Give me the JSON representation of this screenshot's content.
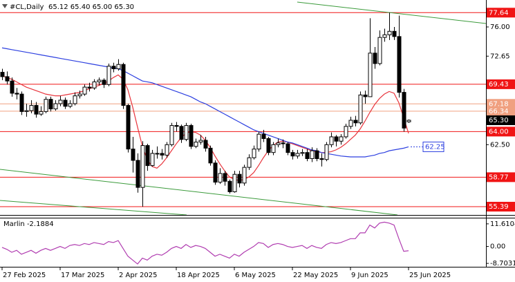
{
  "chart_data": [
    {
      "type": "candlestick",
      "title": "#CL,Daily",
      "header": "65.12 65.40 65.00 65.30",
      "categories": [
        "27 Feb 2025",
        null,
        null,
        null,
        null,
        null,
        null,
        null,
        null,
        null,
        null,
        null,
        "17 Mar 2025",
        null,
        null,
        null,
        null,
        null,
        null,
        null,
        null,
        null,
        null,
        null,
        "2 Apr 2025",
        null,
        null,
        null,
        null,
        null,
        null,
        null,
        null,
        null,
        null,
        null,
        "18 Apr 2025",
        null,
        null,
        null,
        null,
        null,
        null,
        null,
        null,
        null,
        null,
        null,
        "6 May 2025",
        null,
        null,
        null,
        null,
        null,
        null,
        null,
        null,
        null,
        null,
        null,
        "22 May 2025",
        null,
        null,
        null,
        null,
        null,
        null,
        null,
        null,
        null,
        null,
        null,
        "9 Jun 2025",
        null,
        null,
        null,
        null,
        null,
        null,
        null,
        null,
        null,
        null,
        null,
        "25 Jun 2025"
      ],
      "open": [
        70.8,
        70.3,
        69.8,
        68.4,
        68.3,
        66.3,
        66.4,
        67.0,
        66.0,
        66.3,
        67.7,
        66.6,
        67.2,
        67.6,
        66.9,
        67.2,
        68.1,
        68.3,
        69.1,
        69.0,
        69.7,
        69.9,
        69.4,
        71.5,
        71.2,
        71.7,
        67.0,
        62.0,
        60.7,
        57.6,
        62.4,
        60.1,
        61.5,
        61.5,
        61.3,
        62.5,
        64.7,
        64.6,
        63.1,
        64.7,
        62.3,
        62.8,
        63.0,
        62.1,
        60.4,
        58.2,
        59.2,
        58.3,
        57.1,
        59.1,
        58.1,
        59.9,
        61.0,
        62.0,
        63.7,
        63.2,
        61.6,
        62.5,
        62.7,
        62.6,
        61.6,
        61.2,
        61.5,
        61.6,
        60.9,
        61.8,
        60.9,
        60.8,
        62.5,
        63.4,
        62.9,
        63.4,
        64.6,
        65.3,
        65.0,
        68.2,
        68.0,
        73.0,
        71.8,
        74.8,
        75.1,
        75.5,
        74.9,
        68.5,
        65.12
      ],
      "high": [
        71.2,
        70.9,
        70.2,
        69.0,
        68.6,
        67.2,
        67.6,
        67.4,
        66.9,
        68.0,
        68.0,
        67.6,
        68.1,
        67.9,
        67.6,
        68.5,
        68.7,
        69.4,
        69.6,
        70.0,
        70.2,
        70.1,
        71.8,
        71.9,
        72.3,
        71.9,
        67.2,
        63.4,
        61.5,
        62.9,
        62.6,
        61.9,
        62.3,
        62.0,
        62.8,
        65.0,
        65.1,
        64.8,
        65.0,
        64.9,
        63.2,
        63.6,
        63.4,
        62.4,
        60.7,
        59.8,
        59.5,
        58.5,
        59.5,
        59.5,
        60.2,
        61.4,
        62.4,
        64.0,
        64.2,
        63.4,
        62.8,
        63.2,
        63.1,
        62.8,
        61.9,
        61.9,
        62.0,
        62.0,
        62.2,
        62.1,
        61.5,
        62.8,
        63.9,
        63.6,
        63.7,
        64.9,
        65.7,
        65.8,
        68.6,
        68.7,
        77.0,
        73.7,
        75.6,
        75.8,
        77.64,
        76.0,
        77.3,
        68.9,
        65.4
      ],
      "low": [
        69.9,
        69.4,
        68.0,
        67.7,
        65.9,
        65.7,
        66.1,
        65.6,
        65.8,
        66.1,
        66.3,
        66.4,
        66.9,
        66.6,
        66.7,
        67.0,
        67.8,
        68.1,
        68.6,
        68.8,
        69.3,
        69.0,
        69.2,
        70.8,
        71.0,
        66.6,
        61.6,
        59.3,
        57.0,
        55.39,
        59.5,
        60.0,
        60.9,
        60.8,
        61.0,
        62.3,
        64.0,
        62.7,
        62.9,
        62.0,
        62.1,
        62.5,
        61.7,
        60.1,
        57.9,
        58.0,
        57.8,
        56.9,
        57.0,
        57.6,
        57.8,
        59.6,
        60.8,
        61.7,
        62.8,
        61.3,
        61.3,
        62.2,
        62.1,
        61.3,
        60.8,
        60.9,
        61.2,
        60.6,
        60.5,
        60.6,
        60.0,
        60.6,
        62.2,
        62.3,
        62.5,
        63.2,
        64.3,
        64.6,
        64.8,
        67.2,
        68.0,
        71.2,
        71.6,
        74.3,
        74.5,
        74.5,
        67.9,
        64.0,
        65.0
      ],
      "close": [
        70.3,
        69.8,
        68.4,
        68.3,
        66.3,
        66.4,
        67.0,
        66.0,
        66.3,
        67.7,
        66.6,
        67.2,
        67.6,
        66.9,
        67.2,
        68.1,
        68.3,
        69.1,
        69.0,
        69.7,
        69.9,
        69.4,
        71.5,
        71.2,
        71.7,
        67.0,
        62.0,
        60.7,
        57.6,
        62.4,
        60.1,
        61.5,
        61.5,
        61.3,
        62.5,
        64.7,
        64.6,
        63.1,
        64.7,
        62.3,
        62.8,
        63.0,
        62.1,
        60.4,
        58.2,
        59.2,
        58.3,
        57.1,
        59.1,
        58.1,
        59.9,
        61.0,
        62.0,
        63.7,
        63.2,
        61.6,
        62.5,
        62.7,
        62.6,
        61.6,
        61.2,
        61.5,
        61.6,
        60.9,
        61.8,
        60.9,
        60.8,
        62.5,
        63.4,
        62.9,
        63.4,
        64.6,
        65.3,
        65.0,
        68.2,
        68.0,
        73.0,
        71.8,
        74.8,
        75.1,
        75.5,
        74.9,
        68.5,
        64.4,
        65.3
      ],
      "up_color": "#ffffff",
      "down_color": "#000000",
      "edge_color": "#000000",
      "series": [
        {
          "color": "#e8343c",
          "values": [
            70.4,
            70.2,
            70.0,
            69.7,
            69.4,
            69.1,
            68.9,
            68.7,
            68.5,
            68.3,
            68.2,
            68.1,
            68.1,
            68.2,
            68.3,
            68.4,
            68.5,
            68.7,
            68.9,
            69.1,
            69.3,
            69.5,
            69.8,
            70.2,
            70.5,
            70.0,
            68.8,
            66.8,
            64.5,
            62.3,
            60.8,
            60.0,
            59.8,
            60.3,
            61.0,
            61.8,
            62.6,
            63.3,
            63.8,
            64.0,
            63.9,
            63.6,
            63.0,
            62.2,
            61.2,
            60.3,
            59.5,
            58.8,
            58.5,
            58.4,
            58.5,
            58.8,
            59.3,
            60.1,
            61.0,
            61.8,
            62.4,
            62.8,
            62.9,
            62.8,
            62.6,
            62.4,
            62.2,
            62.0,
            61.8,
            61.7,
            61.6,
            61.6,
            61.7,
            61.9,
            62.2,
            62.6,
            63.1,
            63.6,
            64.3,
            65.2,
            66.2,
            67.1,
            67.8,
            68.3,
            68.6,
            68.4,
            67.3,
            65.6,
            63.8
          ]
        },
        {
          "color": "#2c3fe0",
          "value_box": true,
          "values": [
            73.6,
            73.5,
            73.4,
            73.3,
            73.2,
            73.1,
            73.0,
            72.9,
            72.8,
            72.7,
            72.6,
            72.5,
            72.4,
            72.3,
            72.2,
            72.1,
            72.0,
            71.9,
            71.8,
            71.7,
            71.6,
            71.5,
            71.4,
            71.3,
            71.2,
            71.0,
            70.7,
            70.4,
            70.1,
            69.8,
            69.7,
            69.6,
            69.4,
            69.2,
            69.0,
            68.8,
            68.6,
            68.4,
            68.2,
            68.0,
            67.7,
            67.4,
            67.2,
            66.9,
            66.6,
            66.3,
            66.0,
            65.7,
            65.4,
            65.1,
            64.8,
            64.5,
            64.2,
            64.0,
            63.8,
            63.6,
            63.4,
            63.2,
            63.0,
            62.8,
            62.7,
            62.5,
            62.3,
            62.1,
            61.9,
            61.8,
            61.6,
            61.5,
            61.4,
            61.3,
            61.2,
            61.15,
            61.1,
            61.1,
            61.1,
            61.1,
            61.2,
            61.3,
            61.5,
            61.6,
            61.8,
            61.9,
            62.0,
            62.1,
            62.25
          ]
        }
      ],
      "levels": [
        {
          "value": 77.64,
          "label": "77.64",
          "color": "#f01414"
        },
        {
          "value": 69.43,
          "label": "69.43",
          "color": "#f01414"
        },
        {
          "value": 67.18,
          "label": "67.18",
          "color": "#f0a080"
        },
        {
          "value": 66.34,
          "label": "66.34",
          "color": "#f0a080"
        },
        {
          "value": 64,
          "label": "64.00",
          "color": "#f01414"
        },
        {
          "value": 58.77,
          "label": "58.77",
          "color": "#f01414"
        },
        {
          "value": 55.39,
          "label": "55.39",
          "color": "#f01414"
        }
      ],
      "current_price": {
        "value": 65.3,
        "label": "65.30"
      },
      "ylim": [
        54.44,
        79.09
      ],
      "yticks": [
        {
          "value": 76,
          "label": "76.00"
        },
        72.65,
        {
          "value": 62.5,
          "label": "62.50"
        }
      ]
    },
    {
      "type": "line",
      "title": "Marlin",
      "color": "#b03cb0",
      "values": [
        -0.5,
        -1.5,
        -3,
        -2,
        -4,
        -3,
        -2,
        -3.5,
        -2,
        -1,
        -2,
        -1,
        0,
        -1,
        0.5,
        1,
        0.5,
        1.5,
        1,
        2,
        1.5,
        1,
        2.5,
        2,
        3,
        -1,
        -5,
        -7,
        -9,
        -6,
        -7,
        -5,
        -4,
        -4.5,
        -3,
        -1,
        0,
        -1,
        1,
        -0.5,
        0.5,
        0,
        -1,
        -3,
        -5,
        -4,
        -5,
        -6,
        -4,
        -5,
        -3,
        -1.5,
        0,
        2,
        1.5,
        -0.5,
        1,
        1.5,
        1,
        0,
        -0.5,
        0,
        0.5,
        -1,
        0.5,
        -0.5,
        -1,
        1,
        2,
        1.5,
        2,
        3,
        4,
        4,
        7,
        7,
        11,
        9.5,
        12,
        12.5,
        12,
        11,
        4,
        -2.5,
        -2.1884
      ],
      "ylim": [
        -10.45,
        14.76
      ],
      "yticks": [
        11.6104,
        {
          "value": 0,
          "label": "0.00"
        },
        -8.7031
      ]
    }
  ]
}
